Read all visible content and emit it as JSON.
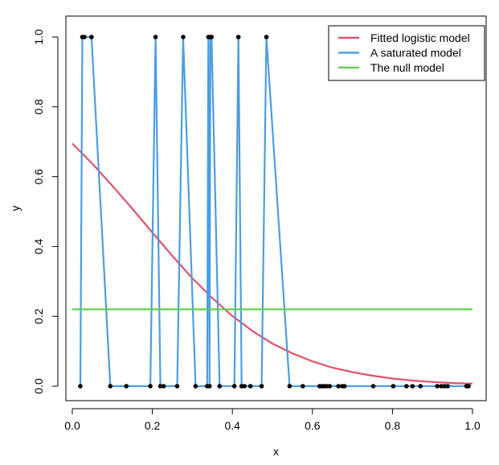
{
  "chart_data": {
    "type": "line",
    "xlabel": "x",
    "ylabel": "y",
    "xlim": [
      0,
      1
    ],
    "ylim": [
      0,
      1
    ],
    "x_ticks": [
      0.0,
      0.2,
      0.4,
      0.6,
      0.8,
      1.0
    ],
    "x_tick_labels": [
      "0.0",
      "0.2",
      "0.4",
      "0.6",
      "0.8",
      "1.0"
    ],
    "y_ticks": [
      0.0,
      0.2,
      0.4,
      0.6,
      0.8,
      1.0
    ],
    "y_tick_labels": [
      "0.0",
      "0.2",
      "0.4",
      "0.6",
      "0.8",
      "1.0"
    ],
    "grid": false,
    "legend_position": "top-right",
    "legend": [
      {
        "label": "Fitted logistic model",
        "color": "#DF536B"
      },
      {
        "label": "A saturated model",
        "color": "#4D9DE0"
      },
      {
        "label": "The null model",
        "color": "#61D04F"
      }
    ],
    "points": {
      "x": [
        0.02,
        0.025,
        0.03,
        0.048,
        0.095,
        0.135,
        0.195,
        0.208,
        0.22,
        0.228,
        0.262,
        0.277,
        0.308,
        0.337,
        0.34,
        0.343,
        0.345,
        0.348,
        0.368,
        0.405,
        0.415,
        0.423,
        0.43,
        0.445,
        0.473,
        0.485,
        0.543,
        0.576,
        0.618,
        0.624,
        0.629,
        0.635,
        0.643,
        0.665,
        0.675,
        0.68,
        0.752,
        0.802,
        0.835,
        0.85,
        0.87,
        0.912,
        0.922,
        0.93,
        0.938,
        0.985,
        0.99
      ],
      "y": [
        0,
        1,
        1,
        1,
        0,
        0,
        0,
        1,
        0,
        0,
        0,
        1,
        0,
        0,
        1,
        0,
        1,
        1,
        0,
        0,
        1,
        0,
        0,
        0,
        0,
        1,
        0,
        0,
        0,
        0,
        0,
        0,
        0,
        0,
        0,
        0,
        0,
        0,
        0,
        0,
        0,
        0,
        0,
        0,
        0,
        0,
        0
      ]
    },
    "series": [
      {
        "name": "Fitted logistic model",
        "color": "#DF536B",
        "x": [
          0.0,
          0.05,
          0.1,
          0.15,
          0.2,
          0.25,
          0.3,
          0.35,
          0.4,
          0.45,
          0.5,
          0.55,
          0.6,
          0.65,
          0.7,
          0.75,
          0.8,
          0.85,
          0.9,
          0.95,
          1.0
        ],
        "y": [
          0.695,
          0.637,
          0.574,
          0.508,
          0.44,
          0.373,
          0.309,
          0.252,
          0.201,
          0.158,
          0.122,
          0.094,
          0.071,
          0.053,
          0.04,
          0.03,
          0.022,
          0.016,
          0.012,
          0.009,
          0.007
        ]
      },
      {
        "name": "A saturated model",
        "color": "#4D9DE0",
        "connects": "points"
      },
      {
        "name": "The null model",
        "color": "#61D04F",
        "x": [
          0.0,
          1.0
        ],
        "y": [
          0.22,
          0.22
        ]
      }
    ]
  }
}
